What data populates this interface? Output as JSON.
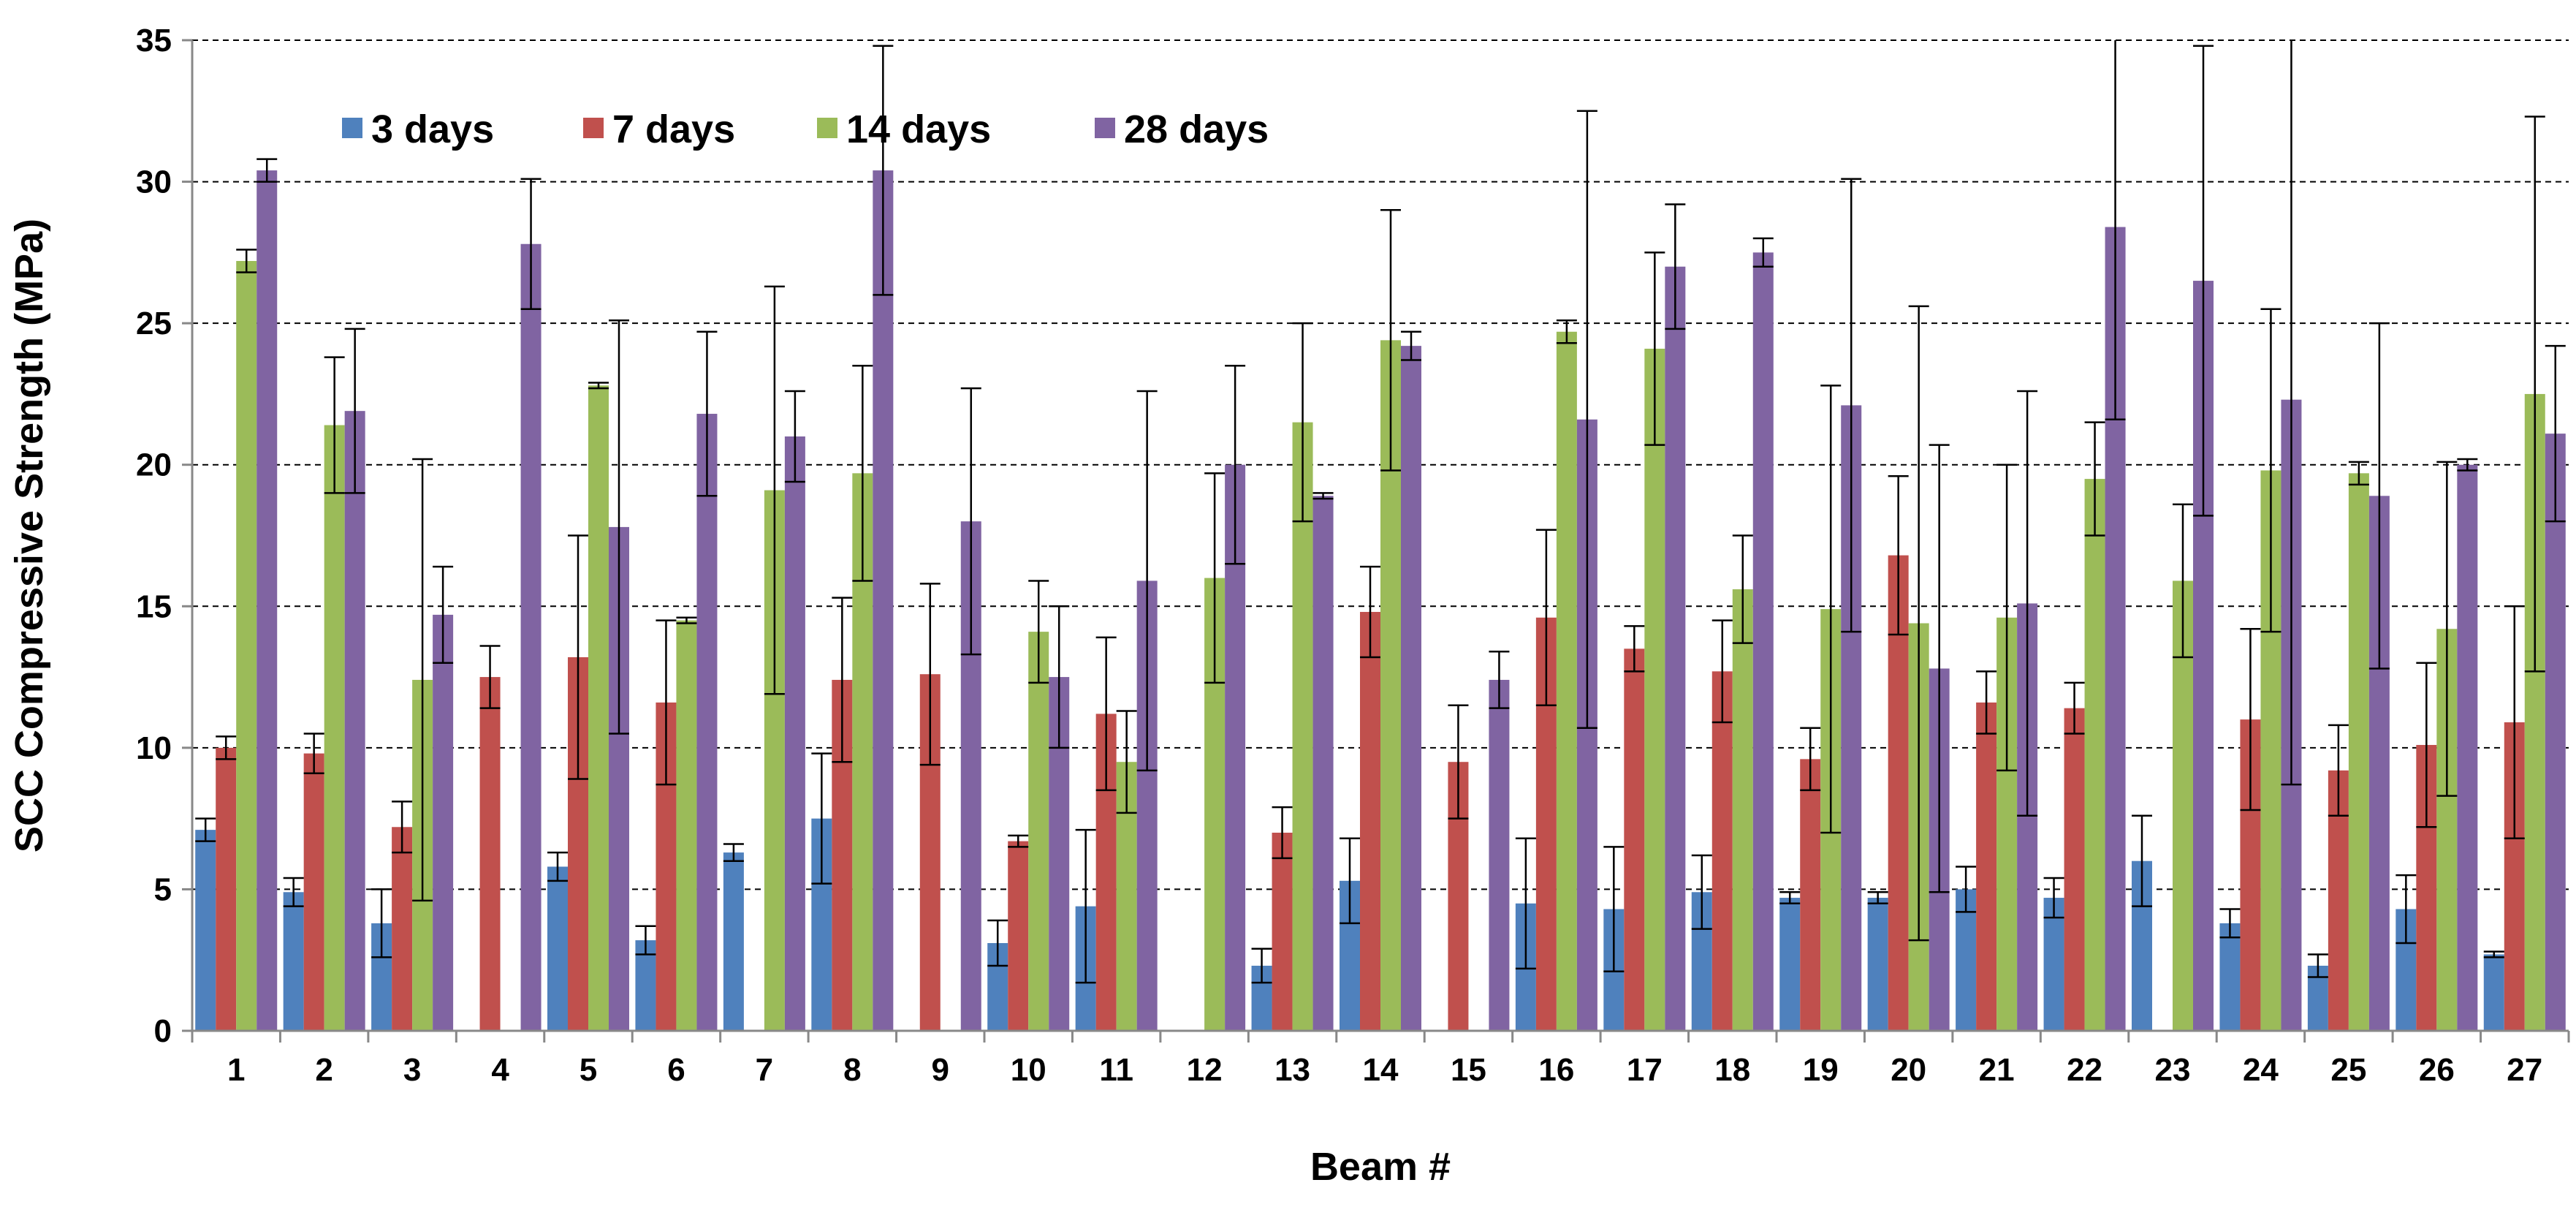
{
  "chart_data": {
    "type": "bar",
    "title": "",
    "xlabel": "Beam #",
    "ylabel": "SCC Compressive Strength (MPa)",
    "ylim": [
      0,
      35
    ],
    "yticks": [
      0,
      5,
      10,
      15,
      20,
      25,
      30,
      35
    ],
    "grid": "horizontal dashed",
    "legend_position": "top-left",
    "categories": [
      "1",
      "2",
      "3",
      "4",
      "5",
      "6",
      "7",
      "8",
      "9",
      "10",
      "11",
      "12",
      "13",
      "14",
      "15",
      "16",
      "17",
      "18",
      "19",
      "20",
      "21",
      "22",
      "23",
      "24",
      "25",
      "26",
      "27"
    ],
    "series": [
      {
        "name": "3 days",
        "color": "#4F81BD",
        "values": [
          7.1,
          4.9,
          3.8,
          null,
          5.8,
          3.2,
          6.3,
          7.5,
          null,
          3.1,
          4.4,
          null,
          2.3,
          5.3,
          null,
          4.5,
          4.3,
          4.9,
          4.7,
          4.7,
          5.0,
          4.7,
          6.0,
          3.8,
          2.3,
          4.3,
          2.7
        ],
        "errors": [
          0.4,
          0.5,
          1.2,
          null,
          0.5,
          0.5,
          0.3,
          2.3,
          null,
          0.8,
          2.7,
          null,
          0.6,
          1.5,
          null,
          2.3,
          2.2,
          1.3,
          0.2,
          0.2,
          0.8,
          0.7,
          1.6,
          0.5,
          0.4,
          1.2,
          0.1
        ]
      },
      {
        "name": "7 days",
        "color": "#C0504D",
        "values": [
          10.0,
          9.8,
          7.2,
          12.5,
          13.2,
          11.6,
          null,
          12.4,
          12.6,
          6.7,
          11.2,
          null,
          7.0,
          14.8,
          9.5,
          14.6,
          13.5,
          12.7,
          9.6,
          16.8,
          11.6,
          11.4,
          null,
          11.0,
          9.2,
          10.1,
          10.9
        ],
        "errors": [
          0.4,
          0.7,
          0.9,
          1.1,
          4.3,
          2.9,
          null,
          2.9,
          3.2,
          0.2,
          2.7,
          null,
          0.9,
          1.6,
          2.0,
          3.1,
          0.8,
          1.8,
          1.1,
          2.8,
          1.1,
          0.9,
          null,
          3.2,
          1.6,
          2.9,
          4.1
        ]
      },
      {
        "name": "14 days",
        "color": "#9BBB59",
        "values": [
          27.2,
          21.4,
          12.4,
          null,
          22.8,
          14.5,
          19.1,
          19.7,
          null,
          14.1,
          9.5,
          16.0,
          21.5,
          24.4,
          null,
          24.7,
          24.1,
          15.6,
          14.9,
          14.4,
          14.6,
          19.5,
          15.9,
          19.8,
          19.7,
          14.2,
          22.5
        ],
        "errors": [
          0.4,
          2.4,
          7.8,
          null,
          0.1,
          0.1,
          7.2,
          3.8,
          null,
          1.8,
          1.8,
          3.7,
          3.5,
          4.6,
          null,
          0.4,
          3.4,
          1.9,
          7.9,
          11.2,
          5.4,
          2.0,
          2.7,
          5.7,
          0.4,
          5.9,
          9.8
        ]
      },
      {
        "name": "28 days",
        "color": "#8064A2",
        "values": [
          30.4,
          21.9,
          14.7,
          27.8,
          17.8,
          21.8,
          21.0,
          30.4,
          18.0,
          12.5,
          15.9,
          20.0,
          18.9,
          24.2,
          12.4,
          21.6,
          27.0,
          27.5,
          22.1,
          12.8,
          15.1,
          28.4,
          26.5,
          22.3,
          18.9,
          20.0,
          21.1
        ],
        "errors": [
          0.4,
          2.9,
          1.7,
          2.3,
          7.3,
          2.9,
          1.6,
          4.4,
          4.7,
          2.5,
          6.7,
          3.5,
          0.1,
          0.5,
          1.0,
          10.9,
          2.2,
          0.5,
          8.0,
          7.9,
          7.5,
          6.8,
          8.3,
          13.6,
          6.1,
          0.2,
          3.1
        ]
      }
    ]
  }
}
